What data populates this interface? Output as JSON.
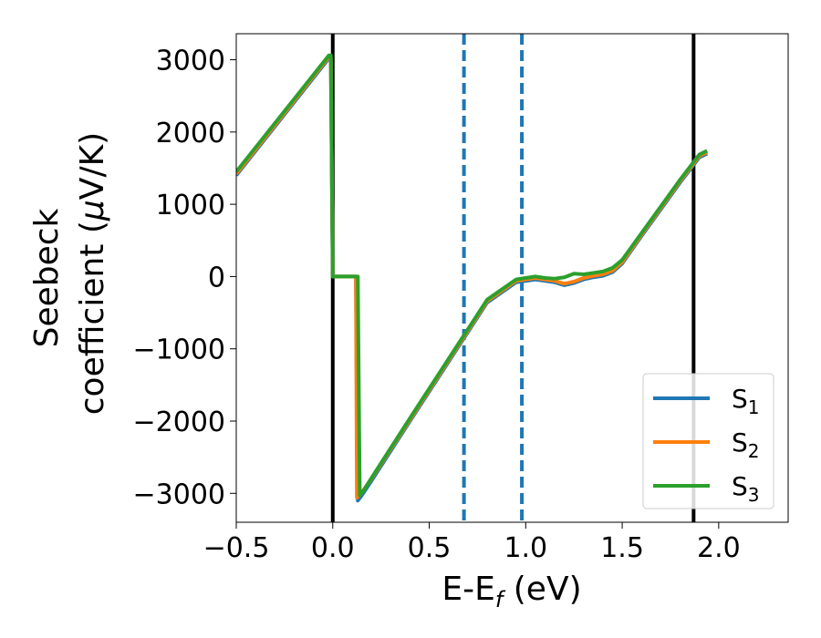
{
  "chart_data": {
    "type": "line",
    "xlabel": "E-E",
    "xlabel_sub": "f",
    "xlabel_unit": " (eV)",
    "ylabel_line1": "Seebeck",
    "ylabel_line2": "coefficient",
    "ylabel_mu": "μ",
    "ylabel_unit_suffix": "V/K",
    "xlim": [
      -0.5,
      2.36
    ],
    "ylim": [
      -3400,
      3360
    ],
    "x_ticks": [
      -0.5,
      0.0,
      0.5,
      1.0,
      1.5,
      2.0
    ],
    "x_tick_labels": [
      "−0.5",
      "0.0",
      "0.5",
      "1.0",
      "1.5",
      "2.0"
    ],
    "y_ticks": [
      -3000,
      -2000,
      -1000,
      0,
      1000,
      2000,
      3000
    ],
    "y_tick_labels": [
      "−3000",
      "−2000",
      "−1000",
      "0",
      "1000",
      "2000",
      "3000"
    ],
    "legend_position": "lower-right",
    "legend": [
      {
        "base": "S",
        "sub": "1",
        "color": "#1f77b4"
      },
      {
        "base": "S",
        "sub": "2",
        "color": "#ff7f0e"
      },
      {
        "base": "S",
        "sub": "3",
        "color": "#2ca02c"
      }
    ],
    "vertical_lines": [
      {
        "x": 0.0,
        "style": "solid",
        "color": "#000000"
      },
      {
        "x": 1.87,
        "style": "solid",
        "color": "#000000"
      },
      {
        "x": 0.68,
        "style": "dashed",
        "color": "#1f77b4"
      },
      {
        "x": 0.98,
        "style": "dashed",
        "color": "#1f77b4"
      }
    ],
    "series": [
      {
        "name": "S1",
        "color": "#1f77b4",
        "x": [
          -0.5,
          -0.02,
          -0.01,
          0.0,
          0.12,
          0.13,
          0.15,
          0.2,
          0.4,
          0.6,
          0.8,
          0.95,
          1.05,
          1.1,
          1.15,
          1.2,
          1.25,
          1.3,
          1.35,
          1.4,
          1.45,
          1.5,
          1.6,
          1.7,
          1.8,
          1.9,
          1.94
        ],
        "y": [
          1400,
          3020,
          3020,
          0,
          0,
          -3100,
          -3030,
          -2830,
          -2000,
          -1180,
          -360,
          -80,
          -40,
          -60,
          -80,
          -120,
          -90,
          -40,
          -10,
          10,
          60,
          180,
          560,
          930,
          1300,
          1650,
          1700
        ]
      },
      {
        "name": "S2",
        "color": "#ff7f0e",
        "x": [
          -0.5,
          -0.02,
          -0.01,
          0.0,
          0.12,
          0.125,
          0.15,
          0.2,
          0.4,
          0.6,
          0.8,
          0.95,
          1.05,
          1.1,
          1.15,
          1.2,
          1.25,
          1.3,
          1.35,
          1.4,
          1.45,
          1.5,
          1.6,
          1.7,
          1.8,
          1.9,
          1.94
        ],
        "y": [
          1420,
          3040,
          3040,
          0,
          0,
          -3060,
          -2990,
          -2800,
          -1980,
          -1160,
          -340,
          -60,
          -20,
          -40,
          -60,
          -100,
          -70,
          -20,
          10,
          30,
          80,
          200,
          580,
          950,
          1320,
          1670,
          1720
        ]
      },
      {
        "name": "S3",
        "color": "#2ca02c",
        "x": [
          -0.5,
          -0.02,
          -0.01,
          0.0,
          0.13,
          0.14,
          0.16,
          0.2,
          0.4,
          0.6,
          0.8,
          0.95,
          1.05,
          1.1,
          1.15,
          1.2,
          1.25,
          1.3,
          1.35,
          1.4,
          1.45,
          1.5,
          1.6,
          1.7,
          1.8,
          1.9,
          1.94
        ],
        "y": [
          1450,
          3060,
          3060,
          0,
          0,
          -3030,
          -2960,
          -2790,
          -1960,
          -1140,
          -320,
          -40,
          0,
          -20,
          -30,
          -10,
          40,
          30,
          50,
          70,
          120,
          230,
          600,
          970,
          1340,
          1690,
          1740
        ]
      }
    ]
  }
}
